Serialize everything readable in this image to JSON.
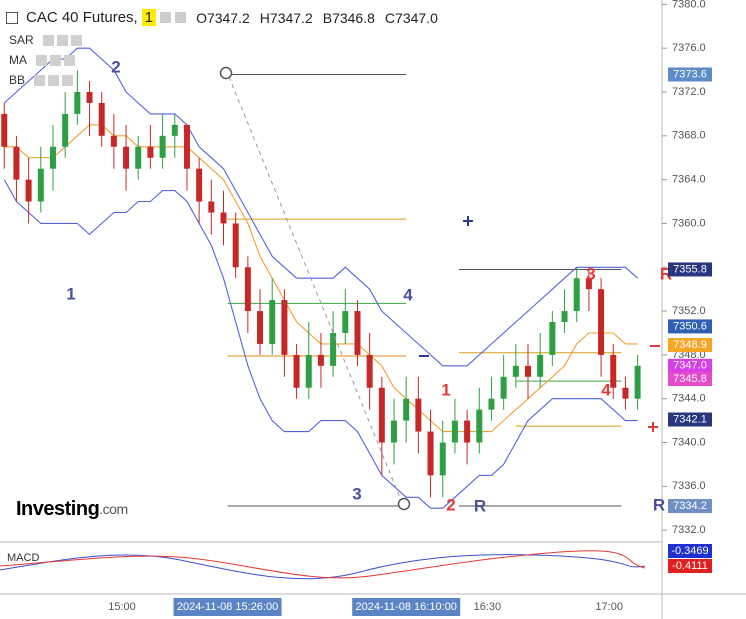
{
  "chart_data": {
    "type": "candlestick",
    "title": "CAC 40 Futures,",
    "interval": "1",
    "ohlc_labels": [
      {
        "key": "O",
        "text": "7347.2"
      },
      {
        "key": "H",
        "text": "7347.2"
      },
      {
        "key": "B",
        "text": "7346.8"
      },
      {
        "key": "C",
        "text": "7347.0"
      }
    ],
    "indicators": [
      "SAR",
      "MA",
      "BB"
    ],
    "lower_indicator": "MACD",
    "logo": {
      "main": "Investing",
      "suffix": ".com"
    },
    "x": [
      "14:31",
      "14:34",
      "14:37",
      "14:40",
      "14:43",
      "14:46",
      "14:49",
      "14:52",
      "14:55",
      "14:58",
      "15:01",
      "15:04",
      "15:07",
      "15:10",
      "15:13",
      "15:16",
      "15:19",
      "15:22",
      "15:25",
      "15:28",
      "15:31",
      "15:34",
      "15:37",
      "15:40",
      "15:43",
      "15:46",
      "15:49",
      "15:52",
      "15:55",
      "15:58",
      "16:01",
      "16:04",
      "16:07",
      "16:10",
      "16:13",
      "16:16",
      "16:19",
      "16:22",
      "16:25",
      "16:28",
      "16:31",
      "16:34",
      "16:37",
      "16:40",
      "16:43",
      "16:46",
      "16:49",
      "16:52",
      "16:55",
      "16:58",
      "17:01",
      "17:04",
      "17:07"
    ],
    "open": [
      7370,
      7367,
      7364,
      7362,
      7365,
      7367,
      7370,
      7372,
      7371,
      7368,
      7367,
      7365,
      7367,
      7366,
      7368,
      7369,
      7365,
      7362,
      7361,
      7360,
      7356,
      7352,
      7349,
      7353,
      7348,
      7345,
      7348,
      7347,
      7350,
      7352,
      7348,
      7345,
      7340,
      7342,
      7344,
      7341,
      7337,
      7340,
      7342,
      7340,
      7343,
      7344,
      7346,
      7347,
      7346,
      7348,
      7351,
      7352,
      7355,
      7354,
      7348,
      7345,
      7344
    ],
    "high": [
      7371,
      7368,
      7366,
      7367,
      7369,
      7372,
      7374,
      7373,
      7372,
      7370,
      7369,
      7368,
      7369,
      7370,
      7370,
      7369,
      7366,
      7364,
      7363,
      7361,
      7357,
      7354,
      7355,
      7354,
      7349,
      7351,
      7350,
      7352,
      7354,
      7353,
      7350,
      7346,
      7344,
      7346,
      7346,
      7343,
      7342,
      7344,
      7343,
      7345,
      7346,
      7348,
      7349,
      7349,
      7350,
      7352,
      7354,
      7356,
      7356,
      7355,
      7349,
      7346,
      7348
    ],
    "low": [
      7365,
      7362,
      7360,
      7361,
      7363,
      7366,
      7369,
      7368,
      7367,
      7365,
      7363,
      7364,
      7365,
      7365,
      7366,
      7363,
      7360,
      7359,
      7358,
      7355,
      7350,
      7348,
      7348,
      7346,
      7344,
      7344,
      7345,
      7346,
      7349,
      7347,
      7343,
      7337,
      7338,
      7340,
      7339,
      7335,
      7335,
      7339,
      7338,
      7339,
      7342,
      7343,
      7345,
      7344,
      7345,
      7347,
      7350,
      7351,
      7352,
      7346,
      7344,
      7343,
      7343
    ],
    "close": [
      7367,
      7364,
      7362,
      7365,
      7367,
      7370,
      7372,
      7371,
      7368,
      7367,
      7365,
      7367,
      7366,
      7368,
      7369,
      7365,
      7362,
      7361,
      7360,
      7356,
      7352,
      7349,
      7353,
      7348,
      7345,
      7348,
      7347,
      7350,
      7352,
      7348,
      7345,
      7340,
      7342,
      7344,
      7341,
      7337,
      7340,
      7342,
      7340,
      7343,
      7344,
      7346,
      7347,
      7346,
      7348,
      7351,
      7352,
      7355,
      7354,
      7348,
      7345,
      7344,
      7347
    ],
    "up_color": "#2ea043",
    "down_color": "#c62828",
    "overlays": [
      {
        "color": "#5462dc",
        "values": [
          7371,
          7372,
          7373,
          7374,
          7375,
          7375,
          7376,
          7376,
          7375,
          7374,
          7372,
          7371,
          7370,
          7370,
          7370,
          7369,
          7367,
          7366,
          7365,
          7363,
          7361,
          7359,
          7357,
          7356,
          7355,
          7355,
          7355,
          7355,
          7356,
          7355,
          7354,
          7352,
          7351,
          7350,
          7349,
          7348,
          7347,
          7347,
          7347,
          7348,
          7349,
          7350,
          7351,
          7352,
          7353,
          7354,
          7355,
          7356,
          7356,
          7356,
          7356,
          7356,
          7355
        ]
      },
      {
        "color": "#5462dc",
        "values": [
          7364,
          7362,
          7361,
          7360,
          7360,
          7360,
          7360,
          7359,
          7360,
          7361,
          7361,
          7362,
          7362,
          7363,
          7363,
          7362,
          7360,
          7358,
          7355,
          7351,
          7347,
          7344,
          7342,
          7341,
          7341,
          7341,
          7342,
          7342,
          7342,
          7341,
          7339,
          7337,
          7336,
          7335,
          7335,
          7334,
          7334,
          7335,
          7336,
          7337,
          7337,
          7338,
          7340,
          7342,
          7343,
          7344,
          7344,
          7344,
          7344,
          7344,
          7343,
          7342,
          7342
        ]
      },
      {
        "color": "#f0a030",
        "values": [
          7367,
          7367,
          7366,
          7366,
          7366,
          7367,
          7368,
          7369,
          7369,
          7368,
          7368,
          7367,
          7367,
          7367,
          7367,
          7367,
          7366,
          7365,
          7364,
          7362,
          7360,
          7357,
          7355,
          7353,
          7351,
          7350,
          7349,
          7349,
          7349,
          7349,
          7348,
          7347,
          7345,
          7344,
          7343,
          7342,
          7341,
          7341,
          7341,
          7341,
          7341,
          7342,
          7343,
          7344,
          7345,
          7346,
          7347,
          7349,
          7350,
          7350,
          7350,
          7349,
          7349
        ]
      }
    ],
    "levels": [
      {
        "value": 7373.6,
        "from": "15:26",
        "to": "16:10",
        "color": "#555555"
      },
      {
        "value": 7360.4,
        "from": "15:26",
        "to": "16:10",
        "color": "#d4a017"
      },
      {
        "value": 7352.7,
        "from": "15:26",
        "to": "16:10",
        "color": "#3aa845"
      },
      {
        "value": 7347.9,
        "from": "15:26",
        "to": "16:10",
        "color": "#e08a1a"
      },
      {
        "value": 7334.2,
        "from": "15:26",
        "to": "16:10",
        "color": "#555555"
      },
      {
        "value": 7355.8,
        "from": "16:23",
        "to": "17:03",
        "color": "#555555"
      },
      {
        "value": 7348.2,
        "from": "16:23",
        "to": "17:03",
        "color": "#d4a017"
      },
      {
        "value": 7345.6,
        "from": "16:37",
        "to": "17:03",
        "color": "#3aa845"
      },
      {
        "value": 7341.5,
        "from": "16:37",
        "to": "17:03",
        "color": "#d4a017"
      },
      {
        "value": 7334.2,
        "from": "16:23",
        "to": "17:03",
        "color": "#555555"
      }
    ],
    "price_tags": [
      {
        "value": 7373.6,
        "label": "7373.6",
        "color": "#5b8bc9"
      },
      {
        "value": 7355.8,
        "label": "7355.8",
        "color": "#27367f"
      },
      {
        "value": 7350.6,
        "label": "7350.6",
        "color": "#2f5fb3"
      },
      {
        "value": 7348.9,
        "label": "7348.9",
        "color": "#f5a623"
      },
      {
        "value": 7347.0,
        "label": "7347.0",
        "color": "#d63ee8"
      },
      {
        "value": 7345.8,
        "label": "7345.8",
        "color": "#e64ac8"
      },
      {
        "value": 7342.1,
        "label": "7342.1",
        "color": "#27367f"
      },
      {
        "value": 7334.2,
        "label": "7334.2",
        "color": "#6f8fc4"
      }
    ],
    "macd_tags": [
      {
        "label": "-0.3469",
        "color": "#1f2fd0"
      },
      {
        "label": "-0.4111",
        "color": "#e02020"
      }
    ],
    "annotations": [
      {
        "text": "1",
        "color": "#4b4fa0"
      },
      {
        "text": "2",
        "color": "#4b4fa0"
      },
      {
        "text": "3",
        "color": "#4b4fa0"
      },
      {
        "text": "4",
        "color": "#4b4fa0"
      },
      {
        "text": "1",
        "color": "#e53935"
      },
      {
        "text": "2",
        "color": "#e53935"
      },
      {
        "text": "3",
        "color": "#e53935"
      },
      {
        "text": "4",
        "color": "#e53935"
      },
      {
        "text": "R",
        "color": "#4b4fa0"
      },
      {
        "text": "R",
        "color": "#e53935"
      },
      {
        "text": "R",
        "color": "#4b4fa0"
      }
    ],
    "ylim": [
      7331.1,
      7380.4
    ],
    "yticks": [
      {
        "value": 7332,
        "label": "7332.0"
      },
      {
        "value": 7336,
        "label": "7336.0"
      },
      {
        "value": 7340,
        "label": "7340.0"
      },
      {
        "value": 7344,
        "label": "7344.0"
      },
      {
        "value": 7348,
        "label": "7348.0"
      },
      {
        "value": 7352,
        "label": "7352.0"
      },
      {
        "value": 7356,
        "label": "7356.0"
      },
      {
        "value": 7360,
        "label": "7360.0"
      },
      {
        "value": 7364,
        "label": "7364.0"
      },
      {
        "value": 7368,
        "label": "7368.0"
      },
      {
        "value": 7372,
        "label": "7372.0"
      },
      {
        "value": 7376,
        "label": "7376.0"
      },
      {
        "value": 7380,
        "label": "7380.0"
      }
    ],
    "xticks": [
      "15:00",
      "16:30",
      "17:00"
    ],
    "crosshair_labels": [
      "2024-11-08 15:26:00",
      "2024-11-08 16:10:00"
    ]
  }
}
